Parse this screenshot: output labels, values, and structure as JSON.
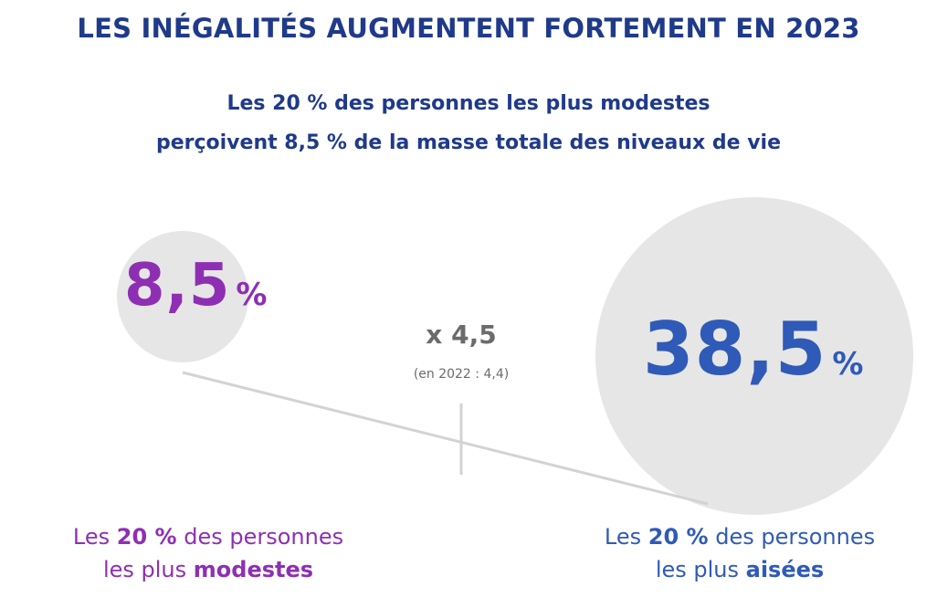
{
  "title": "LES INÉGALITÉS AUGMENTENT FORTEMENT EN 2023",
  "subtitle": {
    "line1": "Les 20 % des personnes les plus modestes",
    "line2": "perçoivent 8,5 % de la masse totale des niveaux de vie"
  },
  "colors": {
    "title": "#1f3a8a",
    "modest": "#8e2fb3",
    "wealthy": "#2f5ab8",
    "circle": "#e6e6e6",
    "ratio": "#6b6b6b",
    "line": "#d3d3d3"
  },
  "low": {
    "value": "8,5",
    "unit": "%",
    "caption_pre": "Les ",
    "caption_bold1": "20 %",
    "caption_mid": " des personnes",
    "caption_pre2": "les plus ",
    "caption_bold2": "modestes"
  },
  "high": {
    "value": "38,5",
    "unit": "%",
    "caption_pre": "Les ",
    "caption_bold1": "20 %",
    "caption_mid": " des personnes",
    "caption_pre2": "les plus ",
    "caption_bold2": "aisées"
  },
  "ratio": {
    "label": "x 4,5",
    "note": "(en 2022 : 4,4)"
  }
}
